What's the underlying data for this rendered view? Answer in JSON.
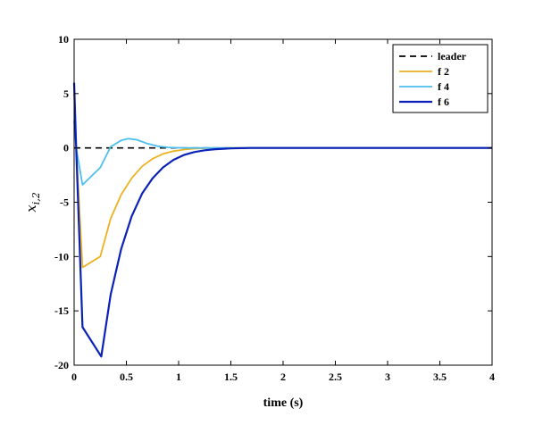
{
  "chart_data": {
    "type": "line",
    "xlabel": "time (s)",
    "ylabel": "x",
    "ylabel_sub": "i,2",
    "xlim": [
      0,
      4
    ],
    "ylim": [
      -20,
      10
    ],
    "xticks": [
      0,
      0.5,
      1,
      1.5,
      2,
      2.5,
      3,
      3.5,
      4
    ],
    "xtick_labels": [
      "0",
      "0.5",
      "1",
      "1.5",
      "2",
      "2.5",
      "3",
      "3.5",
      "4"
    ],
    "yticks": [
      -20,
      -15,
      -10,
      -5,
      0,
      5,
      10
    ],
    "ytick_labels": [
      "-20",
      "-15",
      "-10",
      "-5",
      "0",
      "5",
      "10"
    ],
    "grid": false,
    "legend_position": "top-right",
    "series": [
      {
        "name": "leader",
        "color": "#000000",
        "dash": "dashed",
        "x": [
          0,
          4
        ],
        "y": [
          0,
          0
        ]
      },
      {
        "name": "f 2",
        "color": "#EDB120",
        "dash": "solid",
        "x": [
          0,
          0.02,
          0.08,
          0.25,
          0.35,
          0.45,
          0.55,
          0.65,
          0.75,
          0.85,
          0.95,
          1.05,
          1.15,
          1.3,
          1.5,
          2,
          4
        ],
        "y": [
          5,
          0,
          -11,
          -10,
          -6.5,
          -4.3,
          -2.8,
          -1.7,
          -1.0,
          -0.55,
          -0.3,
          -0.15,
          -0.07,
          -0.02,
          0,
          0,
          0
        ]
      },
      {
        "name": "f 4",
        "color": "#4DBEEE",
        "dash": "solid",
        "x": [
          0,
          0.02,
          0.08,
          0.25,
          0.35,
          0.45,
          0.52,
          0.6,
          0.7,
          0.8,
          0.9,
          1.0,
          1.1,
          1.3,
          1.5,
          4
        ],
        "y": [
          2.5,
          0,
          -3.4,
          -1.8,
          0.1,
          0.7,
          0.85,
          0.75,
          0.4,
          0.15,
          0.05,
          0.01,
          0,
          0,
          0,
          0
        ]
      },
      {
        "name": "f 6",
        "color": "#0A22B8",
        "dash": "solid",
        "x": [
          0,
          0.02,
          0.08,
          0.26,
          0.35,
          0.45,
          0.55,
          0.65,
          0.75,
          0.85,
          0.95,
          1.05,
          1.15,
          1.25,
          1.35,
          1.5,
          1.7,
          2,
          4
        ],
        "y": [
          6,
          0,
          -16.5,
          -19.2,
          -13.5,
          -9.3,
          -6.3,
          -4.2,
          -2.8,
          -1.8,
          -1.1,
          -0.65,
          -0.38,
          -0.22,
          -0.12,
          -0.04,
          0,
          0,
          0
        ]
      }
    ]
  }
}
